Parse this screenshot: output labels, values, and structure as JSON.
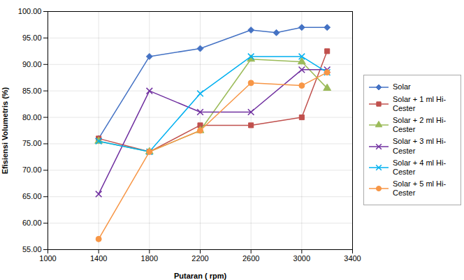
{
  "chart_data": {
    "type": "line",
    "xlabel": "Putaran ( rpm)",
    "ylabel": "Efisiensi Volumetris (%)",
    "xlim": [
      1000,
      3400
    ],
    "ylim": [
      55,
      100
    ],
    "xticks": [
      1000,
      1400,
      1800,
      2200,
      2600,
      3000,
      3400
    ],
    "yticks": [
      {
        "value": 55,
        "label": "55.00"
      },
      {
        "value": 60,
        "label": "60.00"
      },
      {
        "value": 65,
        "label": "65.00"
      },
      {
        "value": 70,
        "label": "70.00"
      },
      {
        "value": 75,
        "label": "75.00"
      },
      {
        "value": 80,
        "label": "80.00"
      },
      {
        "value": 85,
        "label": "85.00"
      },
      {
        "value": 90,
        "label": "90.00"
      },
      {
        "value": 95,
        "label": "95.00"
      },
      {
        "value": 100,
        "label": "100.00"
      }
    ],
    "grid": true,
    "legend": "right",
    "series": [
      {
        "name": "Solar",
        "color": "#4472C4",
        "marker": "diamond",
        "x": [
          1400,
          1800,
          2200,
          2600,
          2800,
          3000,
          3200
        ],
        "values": [
          76.0,
          91.5,
          93.0,
          96.5,
          96.0,
          97.0,
          97.0
        ]
      },
      {
        "name": "Solar + 1 ml Hi-\nCester",
        "color": "#C0504D",
        "marker": "square",
        "x": [
          1400,
          1800,
          2200,
          2600,
          3000,
          3200
        ],
        "values": [
          76.0,
          73.5,
          78.5,
          78.5,
          80.0,
          92.5
        ]
      },
      {
        "name": "Solar + 2 ml Hi-\nCester",
        "color": "#9BBB59",
        "marker": "triangle",
        "x": [
          1400,
          1800,
          2200,
          2600,
          3000,
          3200
        ],
        "values": [
          75.5,
          73.5,
          77.5,
          91.0,
          90.5,
          85.5
        ]
      },
      {
        "name": "Solar + 3 ml Hi-\nCester",
        "color": "#7030A0",
        "marker": "x",
        "x": [
          1400,
          1800,
          2200,
          2600,
          3000,
          3200
        ],
        "values": [
          65.5,
          85.0,
          81.0,
          81.0,
          89.0,
          89.0
        ]
      },
      {
        "name": "Solar + 4 ml Hi-\nCester",
        "color": "#00B0F0",
        "marker": "x",
        "x": [
          1400,
          1800,
          2200,
          2600,
          3000,
          3200
        ],
        "values": [
          75.5,
          73.5,
          84.5,
          91.5,
          91.5,
          88.5
        ]
      },
      {
        "name": "Solar + 5 ml Hi-\nCester",
        "color": "#F79646",
        "marker": "circle",
        "x": [
          1400,
          1800,
          2200,
          2600,
          3000,
          3200
        ],
        "values": [
          57.0,
          73.5,
          77.5,
          86.5,
          86.0,
          88.5
        ]
      }
    ]
  }
}
